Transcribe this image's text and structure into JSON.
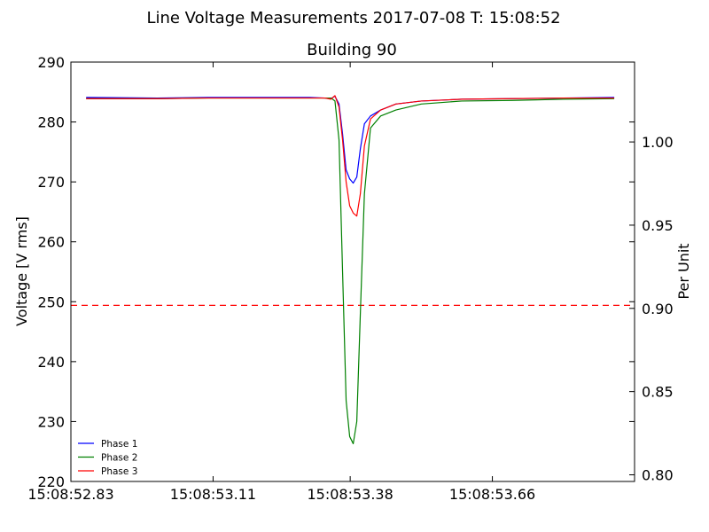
{
  "chart_data": {
    "type": "line",
    "title": "Line Voltage Measurements 2017-07-08 T: 15:08:52",
    "subtitle": "Building 90",
    "ylabel": "Voltage [V rms]",
    "y2label": "Per Unit",
    "xlim": [
      52.83,
      53.94
    ],
    "ylim": [
      220,
      290
    ],
    "y2lim": [
      0.796,
      1.048
    ],
    "x_ticks": [
      {
        "value": 52.83,
        "label": "15:08:52.83"
      },
      {
        "value": 53.11,
        "label": "15:08:53.11"
      },
      {
        "value": 53.38,
        "label": "15:08:53.38"
      },
      {
        "value": 53.66,
        "label": "15:08:53.66"
      }
    ],
    "y_ticks": [
      220,
      230,
      240,
      250,
      260,
      270,
      280,
      290
    ],
    "y2_ticks": [
      "0.80",
      "0.85",
      "0.90",
      "0.95",
      "1.00"
    ],
    "reference_line": {
      "value": 249.4,
      "color": "#ff0000",
      "style": "dashed"
    },
    "legend_position": "lower-left",
    "grid": false,
    "series": [
      {
        "name": "Phase 1",
        "color": "#0000ff",
        "x": [
          52.86,
          53.0,
          53.1,
          53.2,
          53.3,
          53.33,
          53.342,
          53.35,
          53.358,
          53.365,
          53.372,
          53.379,
          53.386,
          53.393,
          53.4,
          53.408,
          53.42,
          53.44,
          53.47,
          53.52,
          53.6,
          53.7,
          53.8,
          53.9
        ],
        "y": [
          284.1,
          284.0,
          284.1,
          284.1,
          284.1,
          284.0,
          283.9,
          284.3,
          283.0,
          278.0,
          272.0,
          270.5,
          269.8,
          270.8,
          275.5,
          279.7,
          281.0,
          282.0,
          283.0,
          283.5,
          283.8,
          283.9,
          284.0,
          284.1
        ]
      },
      {
        "name": "Phase 2",
        "color": "#008000",
        "x": [
          52.86,
          53.0,
          53.1,
          53.2,
          53.3,
          53.33,
          53.342,
          53.35,
          53.358,
          53.365,
          53.372,
          53.379,
          53.386,
          53.393,
          53.4,
          53.408,
          53.42,
          53.44,
          53.47,
          53.52,
          53.6,
          53.7,
          53.8,
          53.9
        ],
        "y": [
          283.9,
          283.9,
          284.0,
          284.0,
          284.0,
          284.0,
          284.0,
          283.5,
          277.0,
          255.0,
          233.5,
          227.5,
          226.3,
          230.0,
          248.0,
          268.0,
          279.0,
          281.0,
          282.0,
          283.0,
          283.5,
          283.6,
          283.8,
          283.9
        ]
      },
      {
        "name": "Phase 3",
        "color": "#ff0000",
        "x": [
          52.86,
          53.0,
          53.1,
          53.2,
          53.3,
          53.33,
          53.342,
          53.35,
          53.358,
          53.365,
          53.372,
          53.379,
          53.386,
          53.393,
          53.4,
          53.408,
          53.42,
          53.44,
          53.47,
          53.52,
          53.6,
          53.7,
          53.8,
          53.9
        ],
        "y": [
          283.9,
          283.9,
          284.0,
          284.0,
          284.0,
          284.0,
          283.8,
          284.4,
          282.5,
          277.0,
          270.0,
          266.0,
          264.8,
          264.3,
          268.0,
          276.0,
          280.5,
          282.0,
          283.0,
          283.5,
          283.8,
          283.9,
          284.0,
          284.0
        ]
      }
    ]
  }
}
